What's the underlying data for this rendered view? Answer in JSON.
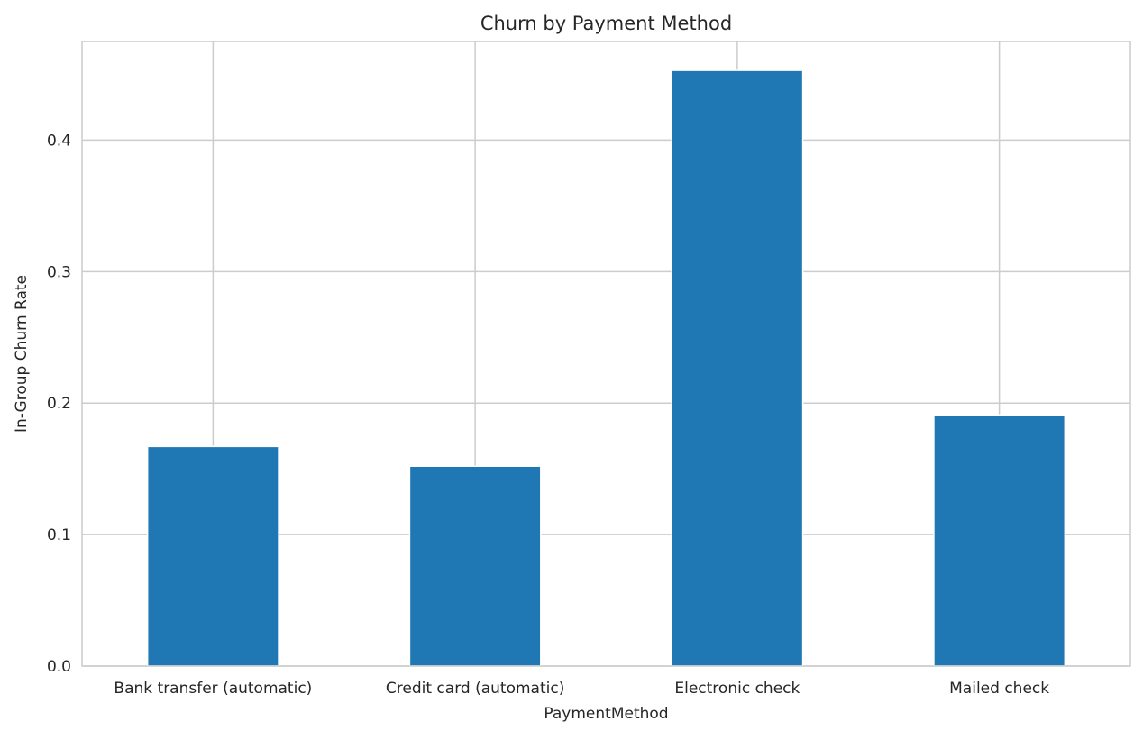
{
  "chart_data": {
    "type": "bar",
    "title": "Churn by Payment Method",
    "xlabel": "PaymentMethod",
    "ylabel": "In-Group Churn Rate",
    "categories": [
      "Bank transfer (automatic)",
      "Credit card (automatic)",
      "Electronic check",
      "Mailed check"
    ],
    "values": [
      0.167,
      0.152,
      0.453,
      0.191
    ],
    "ylim": [
      0,
      0.475
    ],
    "yticks": [
      0.0,
      0.1,
      0.2,
      0.3,
      0.4
    ],
    "ytick_labels": [
      "0.0",
      "0.1",
      "0.2",
      "0.3",
      "0.4"
    ],
    "grid": true,
    "bar_color": "#1f77b4",
    "grid_color": "#cccccc",
    "text_color": "#262626"
  }
}
